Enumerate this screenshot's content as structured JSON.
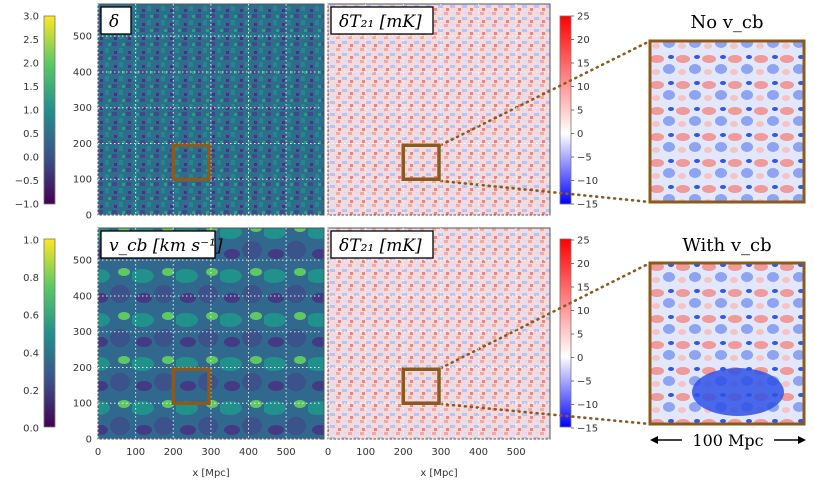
{
  "chart_data": {
    "type": "heatmap",
    "xlabel": "x [Mpc]",
    "x_ticks": [
      "0",
      "100",
      "200",
      "300",
      "400",
      "500"
    ],
    "y_ticks": [
      "0",
      "100",
      "200",
      "300",
      "400",
      "500"
    ],
    "xlim": [
      0,
      590
    ],
    "ylim": [
      0,
      590
    ],
    "panels": [
      {
        "id": "delta",
        "title_text": "δ",
        "colormap": "viridis",
        "colorbar_ticks": [
          "3.0",
          "2.5",
          "2.0",
          "1.5",
          "1.0",
          "0.5",
          "0.0",
          "−0.5",
          "−1.0"
        ],
        "colorbar_range": [
          -1.0,
          3.0
        ]
      },
      {
        "id": "dT21_top",
        "title_text": "δT₂₁ [mK]",
        "colormap": "bwr",
        "colorbar_ticks": [
          "25",
          "20",
          "15",
          "10",
          "5",
          "0",
          "−5",
          "−10",
          "−15"
        ],
        "colorbar_range": [
          -15,
          25
        ]
      },
      {
        "id": "vcb",
        "title_text": "v_cb [km s⁻¹]",
        "colormap": "viridis",
        "colorbar_ticks": [
          "1.0",
          "0.8",
          "0.6",
          "0.4",
          "0.2",
          "0.0"
        ],
        "colorbar_range": [
          0.0,
          1.0
        ]
      },
      {
        "id": "dT21_bottom",
        "title_text": "δT₂₁ [mK]",
        "colormap": "bwr",
        "colorbar_ticks": [
          "25",
          "20",
          "15",
          "10",
          "5",
          "0",
          "−5",
          "−10",
          "−15"
        ],
        "colorbar_range": [
          -15,
          25
        ]
      }
    ],
    "highlight_box": {
      "x_range": [
        200,
        295
      ],
      "y_range": [
        100,
        195
      ]
    },
    "zoom_titles": [
      "No v_cb",
      "With v_cb"
    ],
    "scale_bar_label": "100 Mpc"
  },
  "colors": {
    "box": "#8b5a1e",
    "grid": "#ffffff",
    "axis": "#555555"
  }
}
